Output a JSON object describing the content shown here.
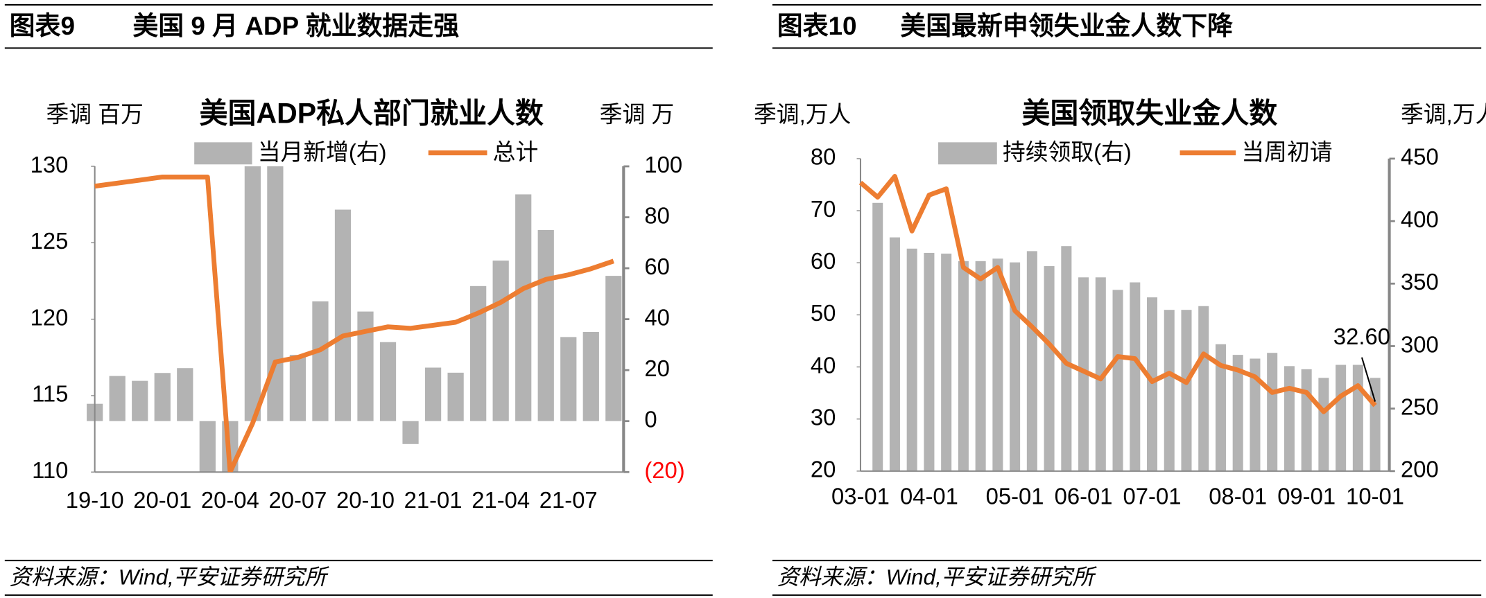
{
  "chart_data": [
    {
      "type": "combo",
      "figure_label": "图表9",
      "heading": "美国 9 月 ADP 就业数据走强",
      "title": "美国ADP私人部门就业人数",
      "y_label": "季调 百万",
      "y2_label": "季调 万",
      "source": "资料来源：Wind,平安证券研究所",
      "categories": [
        "19-10",
        null,
        null,
        "20-01",
        null,
        null,
        "20-04",
        null,
        null,
        "20-07",
        null,
        null,
        "20-10",
        null,
        null,
        "21-01",
        null,
        null,
        "21-04",
        null,
        null,
        "21-07",
        null,
        null
      ],
      "series": [
        {
          "name": "当月新增(右)",
          "type": "bar",
          "axis": "y2",
          "color": "#b3b3b3",
          "values": [
            6.8,
            17.7,
            15.8,
            18.9,
            20.8,
            -20,
            -20,
            100,
            100,
            26,
            47,
            83,
            43,
            31,
            -9,
            21,
            19,
            53,
            63,
            89,
            75,
            33,
            35,
            57
          ]
        },
        {
          "name": "总计",
          "type": "line",
          "color": "#ed7d31",
          "values": [
            128.7,
            128.9,
            129.1,
            129.3,
            129.3,
            129.3,
            110.0,
            113.2,
            117.2,
            117.5,
            118.0,
            118.9,
            119.2,
            119.5,
            119.4,
            119.6,
            119.8,
            120.4,
            121.1,
            122.0,
            122.6,
            122.9,
            123.3,
            123.8
          ]
        }
      ],
      "ylim": [
        110,
        130
      ],
      "yticks": [
        110,
        115,
        120,
        125,
        130
      ],
      "y2lim": [
        -20,
        100
      ],
      "y2ticks": [
        {
          "value": -20,
          "label": "(20)"
        },
        0,
        20,
        40,
        60,
        80,
        100
      ],
      "negative_tick_color": "#ff0000"
    },
    {
      "type": "combo",
      "figure_label": "图表10",
      "heading": "美国最新申领失业金人数下降",
      "title": "美国领取失业金人数",
      "y_label": "季调,万人",
      "y2_label": "季调,万人",
      "source": "资料来源：Wind,平安证券研究所",
      "categories": [
        "03-01",
        null,
        null,
        null,
        "04-01",
        null,
        null,
        null,
        null,
        "05-01",
        null,
        null,
        null,
        "06-01",
        null,
        null,
        null,
        "07-01",
        null,
        null,
        null,
        null,
        "08-01",
        null,
        null,
        null,
        "09-01",
        null,
        null,
        null,
        "10-01"
      ],
      "series": [
        {
          "name": "持续领取(右)",
          "type": "bar",
          "axis": "y2",
          "color": "#b3b3b3",
          "values": [
            null,
            414.6,
            387,
            378,
            374.6,
            374,
            368,
            368,
            370,
            367,
            376,
            364,
            380,
            355,
            355,
            345,
            351,
            339,
            329,
            329,
            332,
            301.5,
            293,
            290,
            294.6,
            284,
            281.5,
            274.6,
            285,
            285,
            274.6
          ]
        },
        {
          "name": "当周初请",
          "type": "line",
          "color": "#ed7d31",
          "values": [
            75.4,
            72.6,
            76.6,
            66.1,
            73.0,
            74.2,
            59.1,
            56.9,
            59.1,
            50.8,
            47.7,
            44.4,
            40.7,
            39.2,
            37.7,
            42.0,
            41.6,
            37.2,
            38.8,
            37.0,
            42.5,
            40.3,
            39.4,
            38.1,
            35.1,
            35.9,
            35.1,
            31.4,
            34.4,
            36.4,
            32.6
          ],
          "value_labels": [
            null,
            null,
            null,
            null,
            null,
            null,
            null,
            null,
            null,
            null,
            null,
            null,
            null,
            null,
            null,
            null,
            null,
            null,
            null,
            null,
            null,
            null,
            null,
            null,
            null,
            null,
            null,
            null,
            null,
            null,
            "32.60"
          ]
        }
      ],
      "ylim": [
        20,
        80
      ],
      "yticks": [
        20,
        30,
        40,
        50,
        60,
        70,
        80
      ],
      "y2lim": [
        200,
        450
      ],
      "y2ticks": [
        200,
        250,
        300,
        350,
        400,
        450
      ]
    }
  ]
}
